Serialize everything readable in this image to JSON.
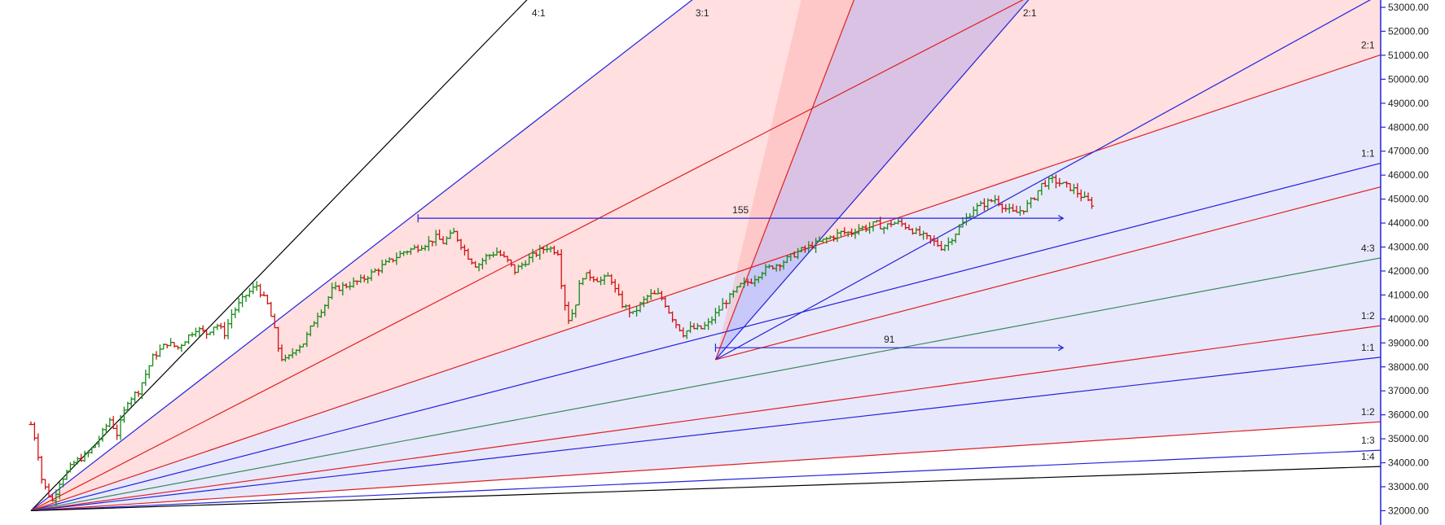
{
  "chart_data": {
    "type": "ohlc",
    "title": "",
    "xlabel": "",
    "ylabel": "",
    "ylim": [
      31600,
      53000
    ],
    "y_ticks": [
      "32000.00",
      "33000.00",
      "34000.00",
      "35000.00",
      "36000.00",
      "37000.00",
      "38000.00",
      "39000.00",
      "40000.00",
      "41000.00",
      "42000.00",
      "43000.00",
      "44000.00",
      "45000.00",
      "46000.00",
      "47000.00",
      "48000.00",
      "49000.00",
      "50000.00",
      "51000.00",
      "52000.00",
      "53000.00"
    ],
    "grid": false,
    "legend": "none",
    "price_path": [
      [
        0,
        35600
      ],
      [
        8,
        34800
      ],
      [
        14,
        33400
      ],
      [
        22,
        32800
      ],
      [
        30,
        32400
      ],
      [
        40,
        33200
      ],
      [
        50,
        33600
      ],
      [
        60,
        34000
      ],
      [
        80,
        34400
      ],
      [
        95,
        35000
      ],
      [
        110,
        35800
      ],
      [
        120,
        35200
      ],
      [
        135,
        36600
      ],
      [
        150,
        37000
      ],
      [
        170,
        38400
      ],
      [
        190,
        39000
      ],
      [
        205,
        38800
      ],
      [
        220,
        39300
      ],
      [
        230,
        39600
      ],
      [
        245,
        39400
      ],
      [
        258,
        39800
      ],
      [
        270,
        39400
      ],
      [
        280,
        40200
      ],
      [
        290,
        40600
      ],
      [
        300,
        41000
      ],
      [
        315,
        41400
      ],
      [
        322,
        41000
      ],
      [
        330,
        40600
      ],
      [
        338,
        39800
      ],
      [
        345,
        38800
      ],
      [
        352,
        38200
      ],
      [
        360,
        38400
      ],
      [
        370,
        38800
      ],
      [
        380,
        39000
      ],
      [
        390,
        39600
      ],
      [
        400,
        40200
      ],
      [
        410,
        40600
      ],
      [
        420,
        41200
      ],
      [
        440,
        41400
      ],
      [
        460,
        41600
      ],
      [
        470,
        41800
      ],
      [
        480,
        42000
      ],
      [
        495,
        42300
      ],
      [
        505,
        42500
      ],
      [
        520,
        42800
      ],
      [
        540,
        43000
      ],
      [
        555,
        43200
      ],
      [
        565,
        43400
      ],
      [
        575,
        43200
      ],
      [
        590,
        43600
      ],
      [
        598,
        43200
      ],
      [
        610,
        42600
      ],
      [
        622,
        42200
      ],
      [
        635,
        42600
      ],
      [
        650,
        42800
      ],
      [
        665,
        42400
      ],
      [
        675,
        42000
      ],
      [
        690,
        42400
      ],
      [
        708,
        42800
      ],
      [
        720,
        43000
      ],
      [
        735,
        42800
      ],
      [
        742,
        41000
      ],
      [
        750,
        40000
      ],
      [
        758,
        40400
      ],
      [
        768,
        41800
      ],
      [
        780,
        41800
      ],
      [
        795,
        41600
      ],
      [
        808,
        41800
      ],
      [
        815,
        41200
      ],
      [
        825,
        40600
      ],
      [
        840,
        40200
      ],
      [
        850,
        40600
      ],
      [
        862,
        41000
      ],
      [
        875,
        41000
      ],
      [
        882,
        40800
      ],
      [
        892,
        40200
      ],
      [
        900,
        39800
      ],
      [
        910,
        39400
      ],
      [
        920,
        39600
      ],
      [
        935,
        39600
      ],
      [
        945,
        39800
      ],
      [
        955,
        40200
      ],
      [
        965,
        40600
      ],
      [
        978,
        41000
      ],
      [
        990,
        41400
      ],
      [
        1005,
        41600
      ],
      [
        1020,
        42000
      ],
      [
        1035,
        42200
      ],
      [
        1050,
        42400
      ],
      [
        1060,
        42600
      ],
      [
        1070,
        42800
      ],
      [
        1085,
        43000
      ],
      [
        1100,
        43200
      ],
      [
        1115,
        43400
      ],
      [
        1130,
        43600
      ],
      [
        1145,
        43600
      ],
      [
        1155,
        43800
      ],
      [
        1168,
        43800
      ],
      [
        1178,
        44000
      ],
      [
        1190,
        43800
      ],
      [
        1200,
        44000
      ],
      [
        1212,
        44000
      ],
      [
        1225,
        43800
      ],
      [
        1235,
        43600
      ],
      [
        1248,
        43400
      ],
      [
        1260,
        43200
      ],
      [
        1270,
        43000
      ],
      [
        1280,
        43200
      ],
      [
        1290,
        43600
      ],
      [
        1300,
        44000
      ],
      [
        1315,
        44600
      ],
      [
        1330,
        44800
      ],
      [
        1345,
        45000
      ],
      [
        1360,
        44600
      ],
      [
        1372,
        44400
      ],
      [
        1385,
        44600
      ],
      [
        1398,
        45000
      ],
      [
        1410,
        45600
      ],
      [
        1425,
        45800
      ],
      [
        1440,
        45600
      ],
      [
        1455,
        45400
      ],
      [
        1470,
        45000
      ],
      [
        1480,
        44800
      ]
    ],
    "gann_fan_1": {
      "origin": {
        "bar": 0,
        "price": 32000
      },
      "lines": [
        {
          "label": "4:1",
          "price_per_bar": 30.8
        },
        {
          "label": "3:1",
          "price_per_bar": 23.1
        },
        {
          "label": "2:1",
          "price_per_bar": 15.4
        },
        {
          "label": "2:1",
          "price_per_bar": 10.1
        },
        {
          "label": "1:1",
          "price_per_bar": 7.7
        },
        {
          "label": "4:3",
          "price_per_bar": 5.6
        },
        {
          "label": "1:2",
          "price_per_bar": 4.1
        },
        {
          "label": "1:1",
          "price_per_bar": 3.4
        },
        {
          "label": "1:2",
          "price_per_bar": 1.97
        },
        {
          "label": "1:3",
          "price_per_bar": 1.34
        },
        {
          "label": "1:4",
          "price_per_bar": 0.98
        }
      ]
    },
    "gann_fan_2": {
      "origin": {
        "bar": 955,
        "price": 38300
      }
    },
    "ranges": [
      {
        "label": "155",
        "price": 44200,
        "from_bar": 540,
        "to_bar": 1440
      },
      {
        "label": "91",
        "price": 38800,
        "from_bar": 955,
        "to_bar": 1440
      }
    ]
  }
}
